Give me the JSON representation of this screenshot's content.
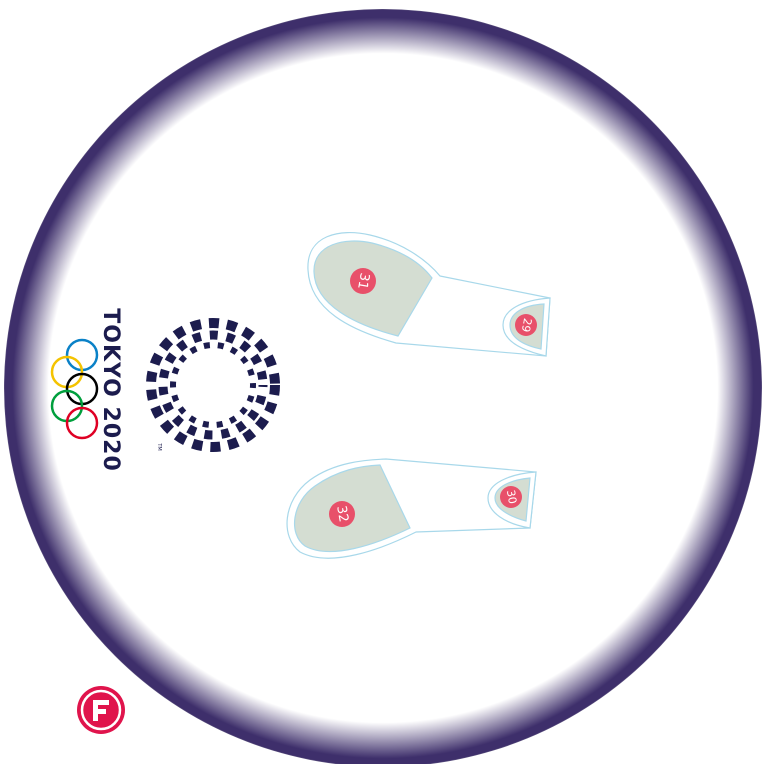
{
  "markers": [
    {
      "label": "31"
    },
    {
      "label": "29"
    },
    {
      "label": "32"
    },
    {
      "label": "30"
    }
  ],
  "logo": {
    "text": "TOKYO 2020",
    "trademark": "TM"
  }
}
